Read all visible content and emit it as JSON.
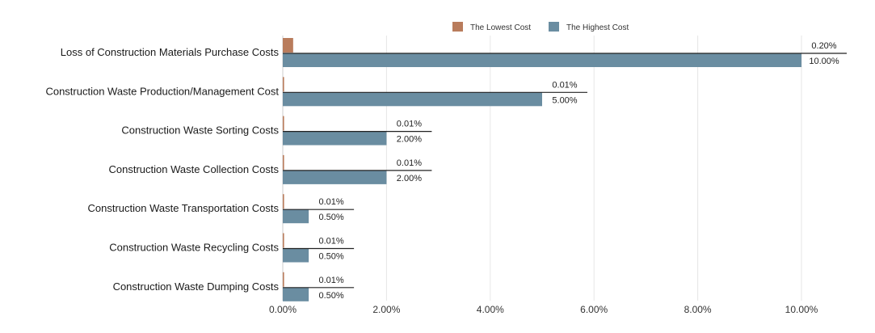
{
  "chart_data": {
    "type": "bar",
    "orientation": "horizontal",
    "categories": [
      "Loss of Construction Materials Purchase Costs",
      "Construction Waste Production/Management Cost",
      "Construction Waste Sorting Costs",
      "Construction Waste Collection Costs",
      "Construction Waste Transportation Costs",
      "Construction Waste Recycling Costs",
      "Construction Waste Dumping Costs"
    ],
    "series": [
      {
        "name": "The Lowest Cost",
        "color": "#b97c5c",
        "values": [
          0.2,
          0.01,
          0.01,
          0.01,
          0.01,
          0.01,
          0.01
        ],
        "labels": [
          "0.20%",
          "0.01%",
          "0.01%",
          "0.01%",
          "0.01%",
          "0.01%",
          "0.01%"
        ]
      },
      {
        "name": "The Highest Cost",
        "color": "#6a8da1",
        "values": [
          10.0,
          5.0,
          2.0,
          2.0,
          0.5,
          0.5,
          0.5
        ],
        "labels": [
          "10.00%",
          "5.00%",
          "2.00%",
          "2.00%",
          "0.50%",
          "0.50%",
          "0.50%"
        ]
      }
    ],
    "x_ticks": [
      0,
      2,
      4,
      6,
      8,
      10
    ],
    "x_tick_labels": [
      "0.00%",
      "2.00%",
      "4.00%",
      "6.00%",
      "8.00%",
      "10.00%"
    ],
    "xlim": [
      0,
      10.9
    ],
    "grid": "vertical",
    "legend": "top-right",
    "title": "",
    "xlabel": "",
    "ylabel": ""
  }
}
